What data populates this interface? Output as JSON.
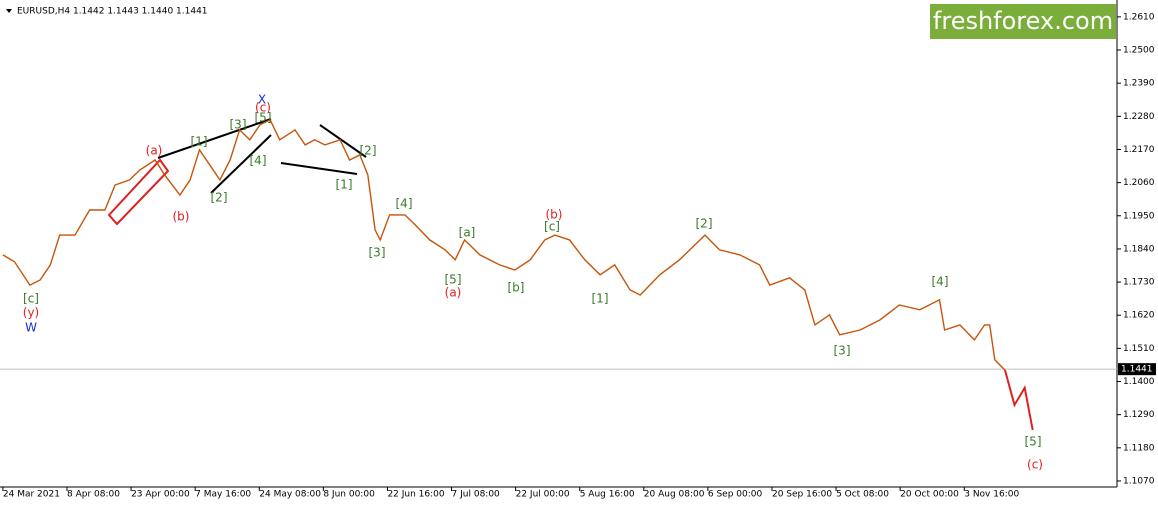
{
  "chart_data": {
    "type": "line",
    "title": "EURUSD,H4  1.1442 1.1443 1.1440 1.1441",
    "logo": "freshforex.com",
    "xlim": [
      -4,
      1527
    ],
    "ylim": [
      1.105,
      1.2656
    ],
    "xticks": [
      {
        "value": 0,
        "label": "24 Mar 2021"
      },
      {
        "value": 88,
        "label": "8 Apr 08:00"
      },
      {
        "value": 176,
        "label": "23 Apr 00:00"
      },
      {
        "value": 264,
        "label": "7 May 16:00"
      },
      {
        "value": 352,
        "label": "24 May 08:00"
      },
      {
        "value": 440,
        "label": "8 Jun 00:00"
      },
      {
        "value": 528,
        "label": "22 Jun 16:00"
      },
      {
        "value": 616,
        "label": "7 Jul 08:00"
      },
      {
        "value": 704,
        "label": "22 Jul 00:00"
      },
      {
        "value": 792,
        "label": "5 Aug 16:00"
      },
      {
        "value": 880,
        "label": "20 Aug 08:00"
      },
      {
        "value": 968,
        "label": "6 Sep 00:00"
      },
      {
        "value": 1056,
        "label": "20 Sep 16:00"
      },
      {
        "value": 1144,
        "label": "5 Oct 08:00"
      },
      {
        "value": 1232,
        "label": "20 Oct 00:00"
      },
      {
        "value": 1320,
        "label": "3 Nov 16:00"
      }
    ],
    "yticks": [
      {
        "value": 1.261,
        "label": "1.2610"
      },
      {
        "value": 1.25,
        "label": "1.2500"
      },
      {
        "value": 1.239,
        "label": "1.2390"
      },
      {
        "value": 1.228,
        "label": "1.2280"
      },
      {
        "value": 1.217,
        "label": "1.2170"
      },
      {
        "value": 1.206,
        "label": "1.2060"
      },
      {
        "value": 1.195,
        "label": "1.1950"
      },
      {
        "value": 1.184,
        "label": "1.1840"
      },
      {
        "value": 1.173,
        "label": "1.1730"
      },
      {
        "value": 1.162,
        "label": "1.1620"
      },
      {
        "value": 1.151,
        "label": "1.1510"
      },
      {
        "value": 1.14,
        "label": "1.1400"
      },
      {
        "value": 1.129,
        "label": "1.1290"
      },
      {
        "value": 1.118,
        "label": "1.1180"
      },
      {
        "value": 1.107,
        "label": "1.1070"
      }
    ],
    "current_price": 1.1441,
    "series": [
      {
        "color": "#c8540a",
        "x": [
          0,
          16,
          37,
          51,
          65,
          78,
          99,
          119,
          140,
          154,
          174,
          188,
          209,
          222,
          243,
          257,
          270,
          284,
          298,
          312,
          325,
          339,
          353,
          367,
          380,
          401,
          415,
          428,
          442,
          463,
          476,
          490,
          501,
          511,
          518,
          531,
          552,
          566,
          586,
          607,
          621,
          634,
          655,
          682,
          703,
          724,
          744,
          758,
          778,
          799,
          820,
          840,
          861,
          875,
          902,
          929,
          950,
          964,
          984,
          1012,
          1039,
          1053,
          1080,
          1101,
          1115,
          1135,
          1149,
          1177,
          1204,
          1231,
          1259,
          1286,
          1293,
          1314,
          1334,
          1348,
          1355,
          1362,
          1376
        ],
        "values": [
          1.182,
          1.1797,
          1.172,
          1.1737,
          1.1787,
          1.1886,
          1.1886,
          1.1969,
          1.1969,
          1.2052,
          1.2069,
          1.2102,
          1.2135,
          1.2086,
          1.2019,
          1.2069,
          1.2169,
          1.2119,
          1.2069,
          1.2135,
          1.2235,
          1.2202,
          1.2252,
          1.2268,
          1.2202,
          1.2235,
          1.2185,
          1.2202,
          1.2185,
          1.2202,
          1.2135,
          1.2152,
          1.2086,
          1.1903,
          1.187,
          1.1953,
          1.1953,
          1.192,
          1.187,
          1.1837,
          1.1804,
          1.187,
          1.182,
          1.1787,
          1.177,
          1.1804,
          1.187,
          1.1886,
          1.187,
          1.1804,
          1.1754,
          1.1787,
          1.1704,
          1.1687,
          1.1754,
          1.1804,
          1.1853,
          1.1886,
          1.1837,
          1.182,
          1.1787,
          1.172,
          1.1744,
          1.1704,
          1.1588,
          1.1621,
          1.1555,
          1.1571,
          1.1604,
          1.1654,
          1.1638,
          1.1671,
          1.1571,
          1.1588,
          1.1538,
          1.1588,
          1.1588,
          1.1472,
          1.1438
        ]
      },
      {
        "color": "#e02020",
        "x": [
          1376,
          1389,
          1403,
          1414
        ],
        "values": [
          1.1438,
          1.1322,
          1.1379,
          1.1239
        ]
      }
    ],
    "annotations": [
      {
        "text": "[c]",
        "color": "#3a7a2a"
      },
      {
        "text": "(y)",
        "color": "#e02020"
      },
      {
        "text": "W",
        "color": "#1030e0"
      },
      {
        "text": "(a)",
        "color": "#e02020"
      },
      {
        "text": "(b)",
        "color": "#e02020"
      },
      {
        "text": "[1]",
        "color": "#3a7a2a"
      },
      {
        "text": "[2]",
        "color": "#3a7a2a"
      },
      {
        "text": "[3]",
        "color": "#3a7a2a"
      },
      {
        "text": "[4]",
        "color": "#3a7a2a"
      },
      {
        "text": "[5]",
        "color": "#3a7a2a"
      },
      {
        "text": "(c)",
        "color": "#e02020"
      },
      {
        "text": "X",
        "color": "#1030e0"
      },
      {
        "text": "[1]",
        "color": "#3a7a2a"
      },
      {
        "text": "[2]",
        "color": "#3a7a2a"
      },
      {
        "text": "[3]",
        "color": "#3a7a2a"
      },
      {
        "text": "[4]",
        "color": "#3a7a2a"
      },
      {
        "text": "[5]",
        "color": "#3a7a2a"
      },
      {
        "text": "(a)",
        "color": "#e02020"
      },
      {
        "text": "[a]",
        "color": "#3a7a2a"
      },
      {
        "text": "[b]",
        "color": "#3a7a2a"
      },
      {
        "text": "(b)",
        "color": "#e02020"
      },
      {
        "text": "[c]",
        "color": "#3a7a2a"
      },
      {
        "text": "[1]",
        "color": "#3a7a2a"
      },
      {
        "text": "[2]",
        "color": "#3a7a2a"
      },
      {
        "text": "[4]",
        "color": "#3a7a2a"
      },
      {
        "text": "[3]",
        "color": "#3a7a2a"
      },
      {
        "text": "[5]",
        "color": "#3a7a2a"
      },
      {
        "text": "(c)",
        "color": "#e02020"
      }
    ]
  }
}
